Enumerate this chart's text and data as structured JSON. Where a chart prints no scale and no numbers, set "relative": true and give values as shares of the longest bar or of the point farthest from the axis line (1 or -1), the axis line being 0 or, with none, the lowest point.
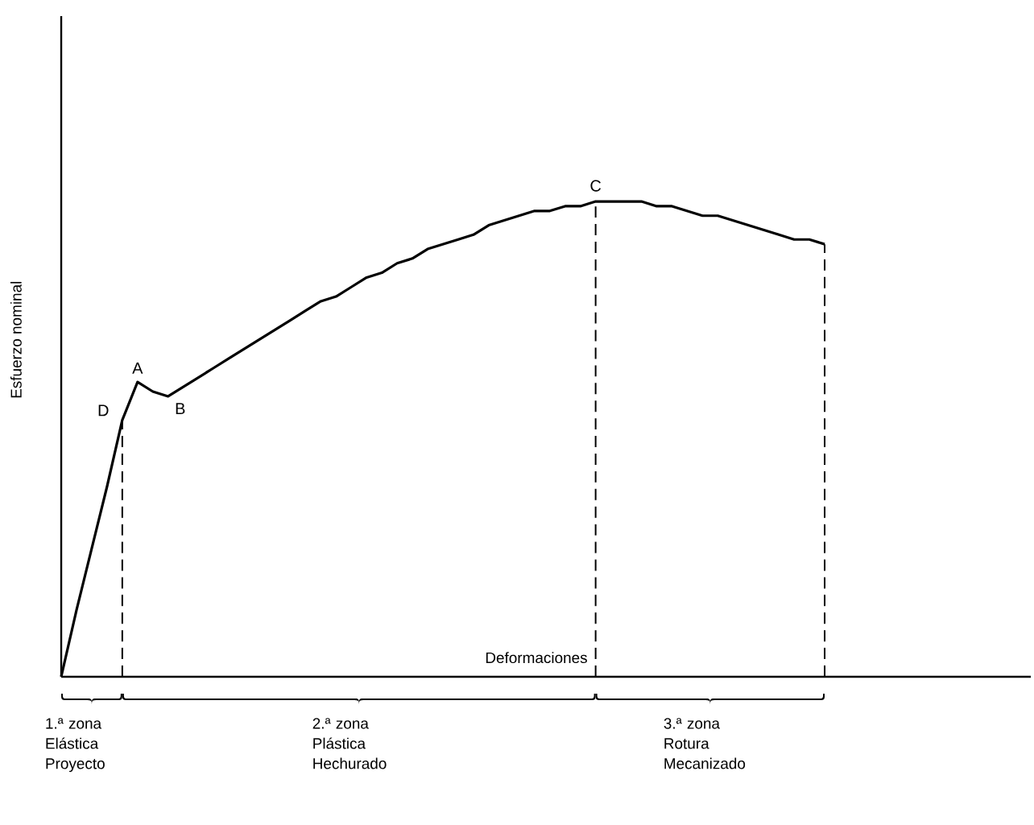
{
  "chart_data": {
    "type": "line",
    "relative": true,
    "ylabel": "Esfuerzo nominal",
    "xlabel": "Deformaciones",
    "tick_labels": false,
    "marker": "none",
    "line_style": "solid",
    "categories": [
      null,
      null,
      null,
      null,
      null,
      null,
      null,
      null,
      null,
      null,
      null,
      null,
      null,
      null,
      null,
      null,
      null,
      null,
      null,
      null,
      null,
      null,
      null,
      null,
      null,
      null,
      null,
      null,
      null,
      null,
      null,
      null,
      null,
      null,
      null,
      null,
      null,
      null,
      null,
      null,
      null,
      null,
      null,
      null,
      null,
      null,
      null,
      null,
      null,
      null,
      null
    ],
    "series": [
      {
        "color": "#000000",
        "values": [
          0,
          0.14,
          0.27,
          0.4,
          0.54,
          0.62,
          0.6,
          0.59,
          0.61,
          0.63,
          0.65,
          0.67,
          0.69,
          0.71,
          0.73,
          0.75,
          0.77,
          0.79,
          0.8,
          0.82,
          0.84,
          0.85,
          0.87,
          0.88,
          0.9,
          0.91,
          0.92,
          0.93,
          0.95,
          0.96,
          0.97,
          0.98,
          0.98,
          0.99,
          0.99,
          1.0,
          1.0,
          1.0,
          1.0,
          0.99,
          0.99,
          0.98,
          0.97,
          0.97,
          0.96,
          0.95,
          0.94,
          0.93,
          0.92,
          0.92,
          0.91
        ]
      }
    ],
    "annotations": [
      {
        "text": "A",
        "y": 0.62
      },
      {
        "text": "B",
        "y": 0.59
      },
      {
        "text": "C",
        "y": 1.0
      },
      "D",
      "1.ª zona Elástica Proyecto",
      "2.ª zona Plástica Hechurado",
      "3.ª zona Rotura Mecanizado"
    ]
  }
}
